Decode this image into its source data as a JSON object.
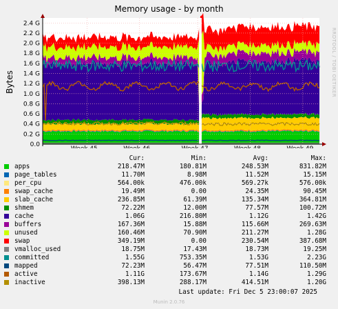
{
  "title": "Memory usage - by month",
  "ylabel": "Bytes",
  "side_text": "RRDTOOL / TOBI OETIKER",
  "footer": "Munin 2.0.76",
  "last_update": "Last update: Fri Dec  5 23:00:07 2025",
  "legend_headers": [
    "Cur:",
    "Min:",
    "Avg:",
    "Max:"
  ],
  "legend": [
    {
      "name": "apps",
      "color": "#00cc00",
      "cur": "218.47M",
      "min": "180.81M",
      "avg": "248.53M",
      "max": "831.82M"
    },
    {
      "name": "page_tables",
      "color": "#0066b3",
      "cur": "11.70M",
      "min": "8.98M",
      "avg": "11.52M",
      "max": "15.15M"
    },
    {
      "name": "per_cpu",
      "color": "#ffe87c",
      "cur": "564.00k",
      "min": "476.00k",
      "avg": "569.27k",
      "max": "576.00k"
    },
    {
      "name": "swap_cache",
      "color": "#ff8000",
      "cur": "19.49M",
      "min": "0.00",
      "avg": "24.35M",
      "max": "90.45M"
    },
    {
      "name": "slab_cache",
      "color": "#ffcc00",
      "cur": "236.85M",
      "min": "61.39M",
      "avg": "135.34M",
      "max": "364.81M"
    },
    {
      "name": "shmem",
      "color": "#008f00",
      "cur": "72.22M",
      "min": "12.00M",
      "avg": "77.57M",
      "max": "100.72M"
    },
    {
      "name": "cache",
      "color": "#330099",
      "cur": "1.06G",
      "min": "216.80M",
      "avg": "1.12G",
      "max": "1.42G"
    },
    {
      "name": "buffers",
      "color": "#990099",
      "cur": "167.36M",
      "min": "15.88M",
      "avg": "115.66M",
      "max": "269.63M"
    },
    {
      "name": "unused",
      "color": "#ccff00",
      "cur": "160.46M",
      "min": "70.90M",
      "avg": "211.27M",
      "max": "1.28G"
    },
    {
      "name": "swap",
      "color": "#ff0000",
      "cur": "349.19M",
      "min": "0.00",
      "avg": "230.54M",
      "max": "387.68M"
    },
    {
      "name": "vmalloc_used",
      "color": "#808080",
      "cur": "18.75M",
      "min": "17.43M",
      "avg": "18.73M",
      "max": "19.25M"
    },
    {
      "name": "committed",
      "color": "#008f8f",
      "cur": "1.55G",
      "min": "753.35M",
      "avg": "1.53G",
      "max": "2.23G"
    },
    {
      "name": "mapped",
      "color": "#00487d",
      "cur": "72.23M",
      "min": "56.47M",
      "avg": "77.51M",
      "max": "110.50M"
    },
    {
      "name": "active",
      "color": "#b35a00",
      "cur": "1.11G",
      "min": "173.67M",
      "avg": "1.14G",
      "max": "1.29G"
    },
    {
      "name": "inactive",
      "color": "#b38f00",
      "cur": "398.13M",
      "min": "288.17M",
      "avg": "414.51M",
      "max": "1.20G"
    }
  ],
  "chart_data": {
    "type": "area",
    "title": "Memory usage - by month",
    "ylabel": "Bytes",
    "x_ticks": [
      "Week 45",
      "Week 46",
      "Week 47",
      "Week 48",
      "Week 49"
    ],
    "y_ticks": [
      "0.0",
      "0.2 G",
      "0.4 G",
      "0.6 G",
      "0.8 G",
      "1.0 G",
      "1.2 G",
      "1.4 G",
      "1.6 G",
      "1.8 G",
      "2.0 G",
      "2.2 G",
      "2.4 G"
    ],
    "ylim": [
      0,
      2.5
    ],
    "grid": true,
    "stack_order": [
      "apps",
      "page_tables",
      "per_cpu",
      "swap_cache",
      "slab_cache",
      "shmem",
      "cache",
      "buffers",
      "unused",
      "swap"
    ],
    "lines": [
      "vmalloc_used",
      "committed",
      "mapped",
      "active",
      "inactive"
    ],
    "gap_at": "Week 47",
    "series_approx": {
      "apps": [
        0.25,
        0.25
      ],
      "page_tables": [
        0.01,
        0.01
      ],
      "per_cpu": [
        0.001,
        0.001
      ],
      "swap_cache": [
        0.02,
        0.02
      ],
      "slab_cache": [
        0.12,
        0.24
      ],
      "shmem": [
        0.08,
        0.07
      ],
      "cache": [
        1.12,
        1.06
      ],
      "buffers": [
        0.12,
        0.17
      ],
      "unused": [
        0.21,
        0.16
      ],
      "swap": [
        0.19,
        0.35
      ],
      "committed": [
        1.55,
        1.55
      ],
      "active": [
        1.14,
        1.11
      ],
      "inactive": [
        0.41,
        0.4
      ]
    }
  }
}
